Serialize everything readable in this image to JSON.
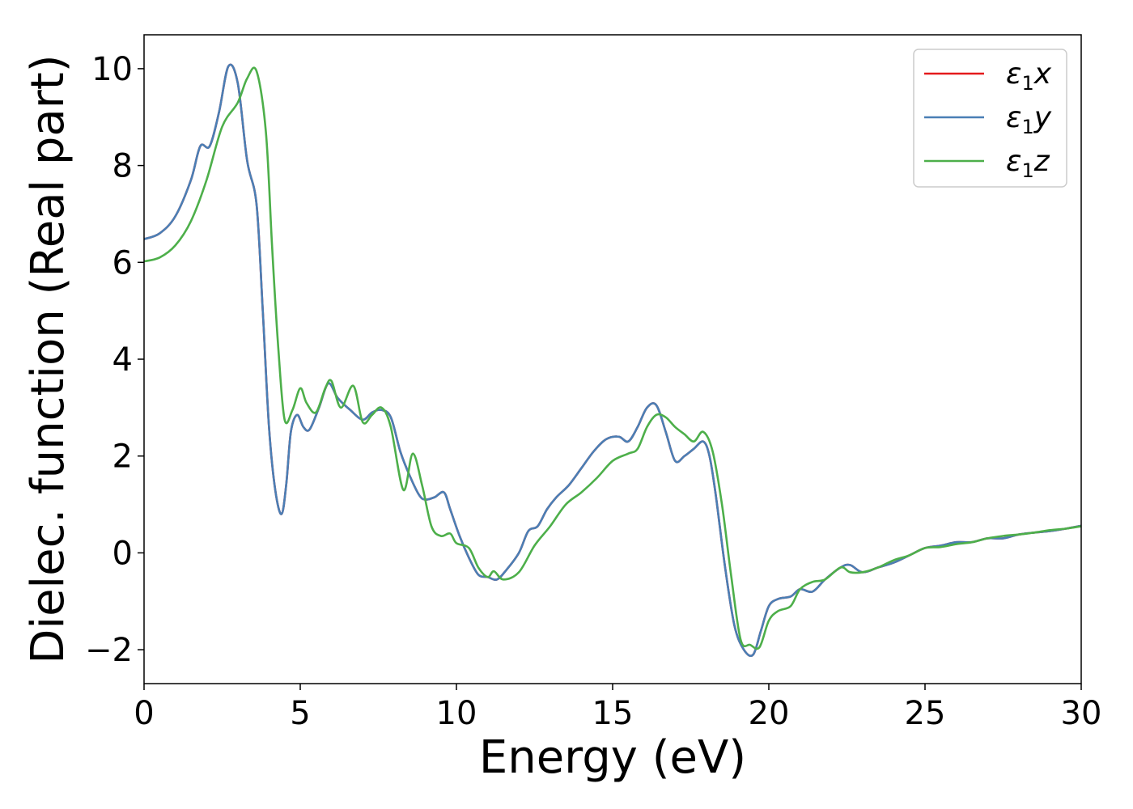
{
  "chart_data": {
    "type": "line",
    "title": "",
    "xlabel": "Energy (eV)",
    "ylabel": "Dielec. function (Real part)",
    "xlim": [
      0,
      30
    ],
    "ylim": [
      -2.7,
      10.7
    ],
    "xticks": [
      0,
      5,
      10,
      15,
      20,
      25,
      30
    ],
    "yticks": [
      -2,
      0,
      2,
      4,
      6,
      8,
      10
    ],
    "xtick_labels": [
      "0",
      "5",
      "10",
      "15",
      "20",
      "25",
      "30"
    ],
    "ytick_labels": [
      "−2",
      "0",
      "2",
      "4",
      "6",
      "8",
      "10"
    ],
    "grid": false,
    "legend_position": "top-right",
    "series": [
      {
        "name": "ε1x",
        "legend_base": "ε",
        "legend_sub": "1",
        "legend_suffix": "x",
        "color": "#e41a1c",
        "x": [
          0,
          0.5,
          1,
          1.5,
          1.8,
          2.1,
          2.4,
          2.7,
          3.0,
          3.3,
          3.6,
          3.8,
          4.0,
          4.2,
          4.4,
          4.55,
          4.7,
          4.9,
          5.1,
          5.3,
          5.6,
          5.9,
          6.2,
          6.6,
          7.0,
          7.3,
          7.6,
          7.9,
          8.2,
          8.5,
          8.8,
          9.0,
          9.3,
          9.6,
          9.8,
          10.1,
          10.4,
          10.7,
          11.0,
          11.3,
          11.6,
          12.0,
          12.3,
          12.6,
          12.9,
          13.2,
          13.6,
          14.0,
          14.4,
          14.8,
          15.2,
          15.5,
          15.8,
          16.1,
          16.4,
          16.7,
          17.0,
          17.3,
          17.6,
          17.9,
          18.1,
          18.3,
          18.6,
          18.9,
          19.2,
          19.5,
          19.75,
          20.0,
          20.3,
          20.7,
          21.0,
          21.4,
          21.8,
          22.3,
          22.6,
          23.0,
          23.5,
          24.0,
          24.5,
          25.0,
          25.5,
          26.0,
          26.5,
          27.0,
          27.5,
          28.0,
          28.5,
          29.0,
          29.5,
          30.0
        ],
        "y": [
          6.48,
          6.6,
          6.95,
          7.7,
          8.4,
          8.4,
          9.1,
          10.05,
          9.7,
          8.1,
          7.2,
          5.0,
          2.6,
          1.3,
          0.8,
          1.4,
          2.5,
          2.85,
          2.6,
          2.55,
          3.0,
          3.5,
          3.2,
          2.95,
          2.75,
          2.9,
          2.95,
          2.8,
          2.1,
          1.6,
          1.2,
          1.1,
          1.15,
          1.25,
          0.9,
          0.35,
          -0.1,
          -0.45,
          -0.5,
          -0.55,
          -0.35,
          0.0,
          0.45,
          0.55,
          0.9,
          1.15,
          1.4,
          1.75,
          2.1,
          2.35,
          2.4,
          2.3,
          2.6,
          3.0,
          3.05,
          2.5,
          1.9,
          2.0,
          2.15,
          2.3,
          2.0,
          1.2,
          -0.3,
          -1.5,
          -2.0,
          -2.1,
          -1.6,
          -1.1,
          -0.95,
          -0.9,
          -0.75,
          -0.8,
          -0.55,
          -0.3,
          -0.25,
          -0.4,
          -0.3,
          -0.2,
          -0.05,
          0.1,
          0.15,
          0.22,
          0.22,
          0.3,
          0.3,
          0.38,
          0.42,
          0.45,
          0.5,
          0.56
        ]
      },
      {
        "name": "ε1y",
        "legend_base": "ε",
        "legend_sub": "1",
        "legend_suffix": "y",
        "color": "#4a7fb5",
        "x": [
          0,
          0.5,
          1,
          1.5,
          1.8,
          2.1,
          2.4,
          2.7,
          3.0,
          3.3,
          3.6,
          3.8,
          4.0,
          4.2,
          4.4,
          4.55,
          4.7,
          4.9,
          5.1,
          5.3,
          5.6,
          5.9,
          6.2,
          6.6,
          7.0,
          7.3,
          7.6,
          7.9,
          8.2,
          8.5,
          8.8,
          9.0,
          9.3,
          9.6,
          9.8,
          10.1,
          10.4,
          10.7,
          11.0,
          11.3,
          11.6,
          12.0,
          12.3,
          12.6,
          12.9,
          13.2,
          13.6,
          14.0,
          14.4,
          14.8,
          15.2,
          15.5,
          15.8,
          16.1,
          16.4,
          16.7,
          17.0,
          17.3,
          17.6,
          17.9,
          18.1,
          18.3,
          18.6,
          18.9,
          19.2,
          19.5,
          19.75,
          20.0,
          20.3,
          20.7,
          21.0,
          21.4,
          21.8,
          22.3,
          22.6,
          23.0,
          23.5,
          24.0,
          24.5,
          25.0,
          25.5,
          26.0,
          26.5,
          27.0,
          27.5,
          28.0,
          28.5,
          29.0,
          29.5,
          30.0
        ],
        "y": [
          6.48,
          6.6,
          6.95,
          7.7,
          8.4,
          8.4,
          9.1,
          10.05,
          9.7,
          8.1,
          7.2,
          5.0,
          2.6,
          1.3,
          0.8,
          1.4,
          2.5,
          2.85,
          2.6,
          2.55,
          3.0,
          3.5,
          3.2,
          2.95,
          2.75,
          2.9,
          2.95,
          2.8,
          2.1,
          1.6,
          1.2,
          1.1,
          1.15,
          1.25,
          0.9,
          0.35,
          -0.1,
          -0.45,
          -0.5,
          -0.55,
          -0.35,
          0.0,
          0.45,
          0.55,
          0.9,
          1.15,
          1.4,
          1.75,
          2.1,
          2.35,
          2.4,
          2.3,
          2.6,
          3.0,
          3.05,
          2.5,
          1.9,
          2.0,
          2.15,
          2.3,
          2.0,
          1.2,
          -0.3,
          -1.5,
          -2.0,
          -2.1,
          -1.6,
          -1.1,
          -0.95,
          -0.9,
          -0.75,
          -0.8,
          -0.55,
          -0.3,
          -0.25,
          -0.4,
          -0.3,
          -0.2,
          -0.05,
          0.1,
          0.15,
          0.22,
          0.22,
          0.3,
          0.3,
          0.38,
          0.42,
          0.45,
          0.5,
          0.56
        ]
      },
      {
        "name": "ε1z",
        "legend_base": "ε",
        "legend_sub": "1",
        "legend_suffix": "z",
        "color": "#4daf4a",
        "x": [
          0,
          0.5,
          1,
          1.5,
          2.0,
          2.5,
          3.0,
          3.3,
          3.6,
          3.9,
          4.1,
          4.3,
          4.5,
          4.75,
          5.0,
          5.2,
          5.5,
          5.8,
          6.0,
          6.3,
          6.7,
          7.0,
          7.3,
          7.6,
          7.9,
          8.3,
          8.6,
          8.9,
          9.2,
          9.5,
          9.8,
          10.0,
          10.4,
          10.7,
          11.0,
          11.2,
          11.5,
          12.0,
          12.5,
          13.0,
          13.5,
          14.0,
          14.5,
          15.0,
          15.5,
          15.8,
          16.1,
          16.4,
          16.7,
          17.0,
          17.3,
          17.6,
          17.9,
          18.2,
          18.5,
          18.8,
          19.1,
          19.4,
          19.7,
          20.0,
          20.3,
          20.7,
          21.0,
          21.4,
          21.8,
          22.3,
          22.6,
          23.0,
          23.5,
          24.0,
          24.5,
          25.0,
          25.5,
          26.0,
          26.5,
          27.0,
          27.5,
          28.0,
          28.5,
          29.0,
          29.5,
          30.0
        ],
        "y": [
          6.02,
          6.1,
          6.35,
          6.85,
          7.7,
          8.8,
          9.3,
          9.8,
          9.95,
          8.7,
          6.3,
          4.2,
          2.75,
          2.95,
          3.4,
          3.1,
          2.9,
          3.4,
          3.55,
          3.0,
          3.45,
          2.7,
          2.85,
          3.0,
          2.6,
          1.3,
          2.05,
          1.4,
          0.55,
          0.35,
          0.4,
          0.2,
          0.1,
          -0.3,
          -0.5,
          -0.38,
          -0.55,
          -0.4,
          0.15,
          0.55,
          1.0,
          1.25,
          1.55,
          1.9,
          2.05,
          2.15,
          2.6,
          2.85,
          2.8,
          2.6,
          2.45,
          2.3,
          2.5,
          2.1,
          1.0,
          -0.5,
          -1.8,
          -1.9,
          -1.95,
          -1.4,
          -1.2,
          -1.1,
          -0.75,
          -0.6,
          -0.55,
          -0.3,
          -0.4,
          -0.4,
          -0.3,
          -0.15,
          -0.05,
          0.1,
          0.12,
          0.18,
          0.22,
          0.3,
          0.35,
          0.38,
          0.42,
          0.47,
          0.5,
          0.55
        ]
      }
    ]
  }
}
